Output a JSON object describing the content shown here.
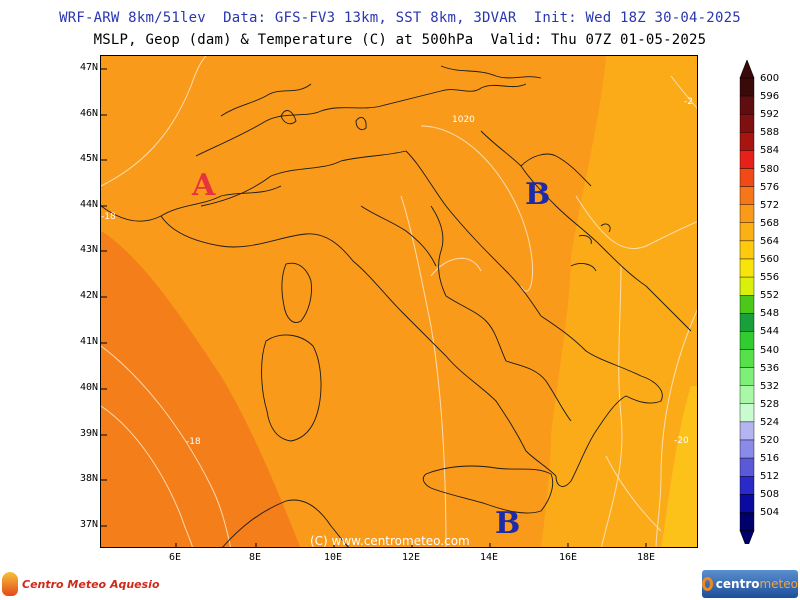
{
  "header": {
    "title_line1": "WRF-ARW 8km/51lev  Data: GFS-FV3 13km, SST 8km, 3DVAR  Init: Wed 18Z 30-04-2025",
    "title_line2": "MSLP, Geop (dam) & Temperature (C) at 500hPa  Valid: Thu 07Z 01-05-2025"
  },
  "map": {
    "lat_labels": [
      "47N",
      "46N",
      "45N",
      "44N",
      "43N",
      "42N",
      "41N",
      "40N",
      "39N",
      "38N",
      "37N"
    ],
    "lon_labels": [
      "6E",
      "8E",
      "10E",
      "12E",
      "14E",
      "16E",
      "18E"
    ],
    "copyright": "(C) www.centrometeo.com",
    "pressure_centers": [
      {
        "label": "A",
        "kind": "high"
      },
      {
        "label": "B",
        "kind": "low"
      },
      {
        "label": "B",
        "kind": "low"
      }
    ],
    "contour_labels": [
      "1020",
      "-18",
      "-20",
      "-2",
      "-18"
    ],
    "colors": {
      "fill_main": "#f99a1a",
      "fill_west": "#f47e1a",
      "fill_east": "#fbab18",
      "fill_far_east": "#fdc21a"
    }
  },
  "colorbar": {
    "levels": [
      "600",
      "596",
      "592",
      "588",
      "584",
      "580",
      "576",
      "572",
      "568",
      "564",
      "560",
      "556",
      "552",
      "548",
      "544",
      "540",
      "536",
      "532",
      "528",
      "524",
      "520",
      "516",
      "512",
      "508",
      "504"
    ],
    "colors": [
      "#3a0a0a",
      "#5e0e0e",
      "#7e1010",
      "#a8140f",
      "#e8201a",
      "#f24a16",
      "#f6761a",
      "#f99a1a",
      "#fbb016",
      "#fdca10",
      "#f8e40a",
      "#d8f00a",
      "#4cc81a",
      "#1aa03a",
      "#30cc30",
      "#56e04a",
      "#7ef07a",
      "#a8f8a8",
      "#c8fcd0",
      "#b4b4f0",
      "#8a8ae8",
      "#5a5ad8",
      "#2a2ac8",
      "#0a0aa0",
      "#00006c"
    ]
  },
  "logos": {
    "left_text": "Centro Meteo Aquesio",
    "right_text_a": "centro",
    "right_text_b": "meteo"
  }
}
